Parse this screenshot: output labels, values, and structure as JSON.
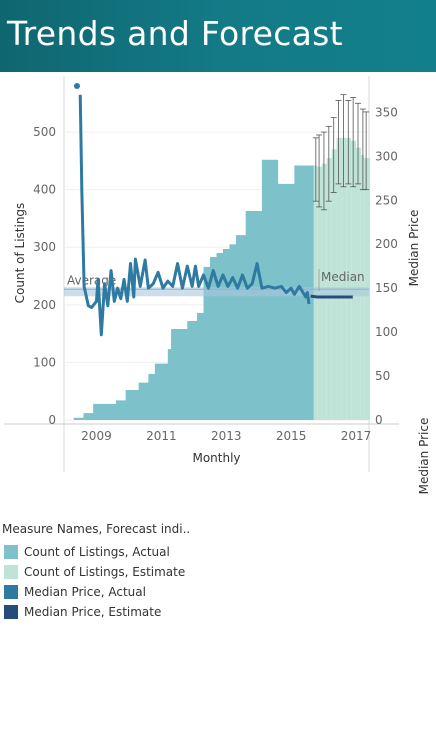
{
  "title": "Trends and Forecast",
  "colors": {
    "banner": "#137a86",
    "count_actual": "#7dc1cb",
    "count_estimate": "#bfe4d7",
    "price_actual": "#2e7aa0",
    "price_estimate": "#244d7c",
    "reference_band": "#a8c8dc"
  },
  "chart_data": {
    "type": "bar",
    "xlabel": "Monthly",
    "ylabel": "Count of Listings",
    "y2label": "Median Price",
    "y2label_bottom": "Median Price",
    "x_ticks": [
      "2009",
      "2011",
      "2013",
      "2015",
      "2017"
    ],
    "ylim": [
      0,
      580
    ],
    "y_ticks": [
      0,
      100,
      200,
      300,
      400,
      500
    ],
    "y2lim": [
      0,
      380
    ],
    "y2_ticks": [
      0,
      50,
      100,
      150,
      200,
      250,
      300,
      350
    ],
    "reference_lines": [
      {
        "label": "Average",
        "axis": "count",
        "value": 227
      },
      {
        "label": "Median",
        "axis": "count",
        "value": 224
      }
    ],
    "series": [
      {
        "name": "Count of Listings, Actual",
        "kind": "step-area",
        "points": [
          [
            2008.0,
            0
          ],
          [
            2008.3,
            4
          ],
          [
            2008.6,
            12
          ],
          [
            2008.9,
            28
          ],
          [
            2009.6,
            34
          ],
          [
            2009.9,
            52
          ],
          [
            2010.3,
            65
          ],
          [
            2010.6,
            80
          ],
          [
            2010.8,
            98
          ],
          [
            2011.2,
            123
          ],
          [
            2011.3,
            158
          ],
          [
            2011.8,
            172
          ],
          [
            2012.1,
            186
          ],
          [
            2012.3,
            266
          ],
          [
            2012.5,
            283
          ],
          [
            2012.7,
            290
          ],
          [
            2012.9,
            297
          ],
          [
            2013.1,
            305
          ],
          [
            2013.3,
            321
          ],
          [
            2013.6,
            363
          ],
          [
            2014.1,
            452
          ],
          [
            2014.6,
            410
          ],
          [
            2015.1,
            442
          ],
          [
            2015.7,
            442
          ]
        ]
      },
      {
        "name": "Count of Listings, Estimate",
        "kind": "bars-with-error",
        "points": [
          [
            2015.7,
            442,
            380,
            490
          ],
          [
            2015.8,
            440,
            370,
            495
          ],
          [
            2015.95,
            445,
            365,
            500
          ],
          [
            2016.1,
            455,
            380,
            510
          ],
          [
            2016.25,
            470,
            395,
            525
          ],
          [
            2016.4,
            490,
            410,
            555
          ],
          [
            2016.55,
            490,
            405,
            565
          ],
          [
            2016.7,
            490,
            410,
            555
          ],
          [
            2016.85,
            485,
            405,
            560
          ],
          [
            2017.0,
            473,
            410,
            550
          ],
          [
            2017.15,
            460,
            400,
            540
          ],
          [
            2017.25,
            455,
            400,
            535
          ]
        ]
      },
      {
        "name": "Median Price, Actual",
        "kind": "line",
        "points": [
          [
            2008.5,
            370
          ],
          [
            2008.55,
            260
          ],
          [
            2008.62,
            152
          ],
          [
            2008.75,
            130
          ],
          [
            2008.85,
            128
          ],
          [
            2009.0,
            135
          ],
          [
            2009.05,
            160
          ],
          [
            2009.15,
            97
          ],
          [
            2009.25,
            155
          ],
          [
            2009.35,
            130
          ],
          [
            2009.45,
            170
          ],
          [
            2009.55,
            135
          ],
          [
            2009.65,
            150
          ],
          [
            2009.75,
            138
          ],
          [
            2009.85,
            160
          ],
          [
            2009.95,
            135
          ],
          [
            2010.05,
            178
          ],
          [
            2010.15,
            140
          ],
          [
            2010.2,
            183
          ],
          [
            2010.35,
            152
          ],
          [
            2010.5,
            182
          ],
          [
            2010.6,
            150
          ],
          [
            2010.75,
            155
          ],
          [
            2010.9,
            168
          ],
          [
            2011.05,
            150
          ],
          [
            2011.2,
            158
          ],
          [
            2011.35,
            152
          ],
          [
            2011.5,
            178
          ],
          [
            2011.65,
            150
          ],
          [
            2011.8,
            175
          ],
          [
            2011.95,
            152
          ],
          [
            2012.05,
            175
          ],
          [
            2012.15,
            152
          ],
          [
            2012.3,
            165
          ],
          [
            2012.45,
            150
          ],
          [
            2012.6,
            170
          ],
          [
            2012.75,
            152
          ],
          [
            2012.9,
            165
          ],
          [
            2013.05,
            152
          ],
          [
            2013.2,
            162
          ],
          [
            2013.35,
            150
          ],
          [
            2013.5,
            165
          ],
          [
            2013.65,
            150
          ],
          [
            2013.8,
            155
          ],
          [
            2013.95,
            178
          ],
          [
            2014.1,
            150
          ],
          [
            2014.3,
            152
          ],
          [
            2014.5,
            150
          ],
          [
            2014.7,
            152
          ],
          [
            2014.85,
            145
          ],
          [
            2015.0,
            150
          ],
          [
            2015.1,
            143
          ],
          [
            2015.25,
            152
          ],
          [
            2015.45,
            140
          ],
          [
            2015.5,
            145
          ],
          [
            2015.55,
            132
          ]
        ]
      },
      {
        "name": "Median Price, Estimate",
        "kind": "line",
        "points": [
          [
            2015.6,
            141
          ],
          [
            2015.8,
            140
          ],
          [
            2016.4,
            140
          ],
          [
            2016.9,
            140
          ]
        ]
      }
    ],
    "outlier_point": [
      2008.4,
      580
    ]
  },
  "legend": {
    "title": "Measure Names, Forecast indi..",
    "items": [
      {
        "label": "Count of Listings, Actual",
        "color": "#7dc1cb"
      },
      {
        "label": "Count of Listings, Estimate",
        "color": "#bfe4d7"
      },
      {
        "label": "Median Price, Actual",
        "color": "#2e7aa0"
      },
      {
        "label": "Median Price, Estimate",
        "color": "#244d7c"
      }
    ]
  }
}
